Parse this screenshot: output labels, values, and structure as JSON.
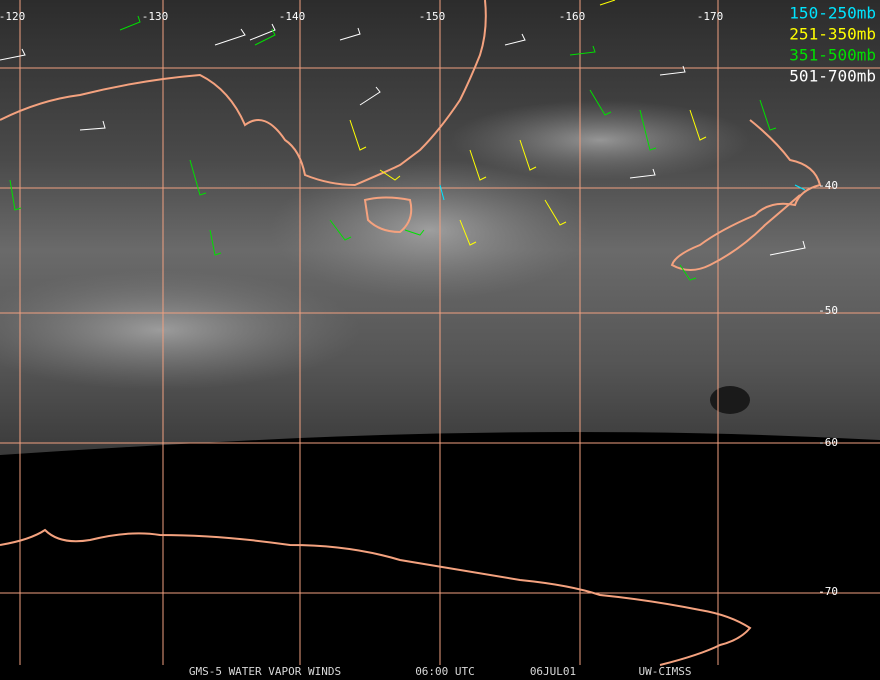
{
  "map": {
    "longitude_labels": [
      "-120",
      "-130",
      "-140",
      "-150",
      "-160",
      "-170"
    ],
    "latitude_labels": [
      "-40",
      "-50",
      "-60",
      "-70"
    ],
    "legend": [
      {
        "label": "150-250mb",
        "color": "#00e5ff"
      },
      {
        "label": "251-350mb",
        "color": "#ffff00"
      },
      {
        "label": "351-500mb",
        "color": "#00e000"
      },
      {
        "label": "501-700mb",
        "color": "#ffffff"
      }
    ],
    "footer": [
      "GMS-5 WATER VAPOR WINDS",
      "06:00 UTC",
      "06JUL01",
      "UW-CIMSS"
    ]
  }
}
